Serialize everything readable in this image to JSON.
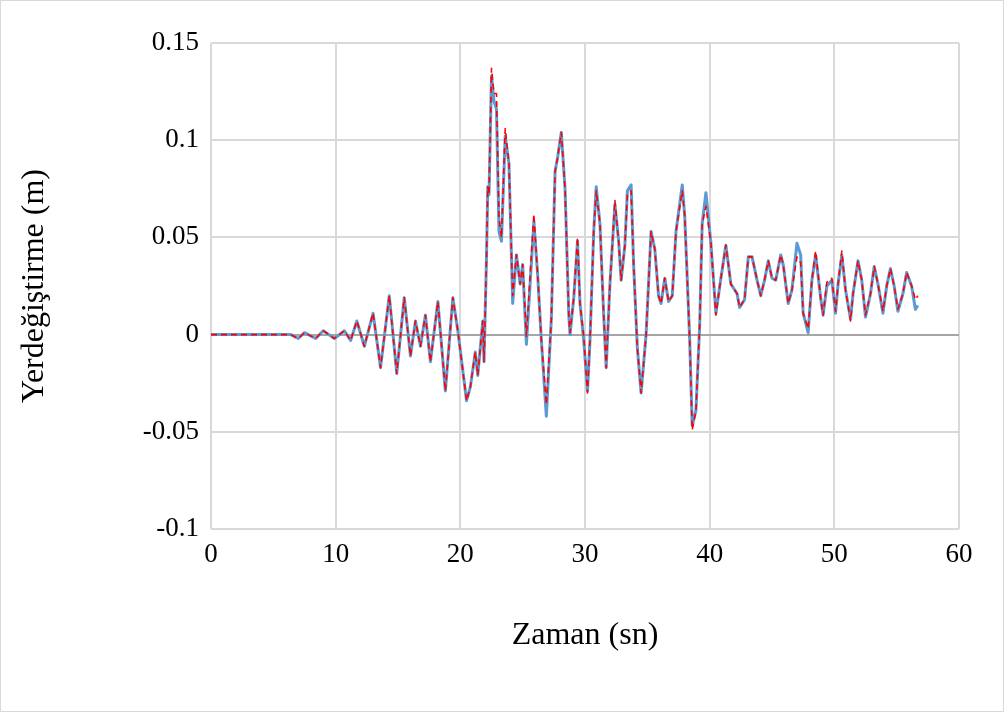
{
  "chart_data": {
    "type": "line",
    "xlabel": "Zaman (sn)",
    "ylabel": "Yerdeğiştirme (m)",
    "xlim": [
      0,
      60
    ],
    "xticks": [
      0,
      10,
      20,
      30,
      40,
      50,
      60
    ],
    "ylim": [
      -0.1,
      0.15
    ],
    "yticks": [
      -0.1,
      -0.05,
      0,
      0.05,
      0.1,
      0.15
    ],
    "grid": true,
    "legend": false,
    "marker": "none",
    "series": [
      {
        "color": "#5b9bd5",
        "line_style": "solid",
        "x": [
          0,
          6.4,
          7.0,
          7.5,
          8.4,
          9.0,
          9.9,
          10.7,
          11.2,
          11.7,
          12.3,
          13.0,
          13.6,
          14.3,
          14.9,
          15.5,
          16.0,
          16.4,
          16.8,
          17.2,
          17.6,
          18.2,
          18.8,
          19.4,
          19.8,
          20.5,
          20.8,
          21.2,
          21.4,
          21.8,
          21.9,
          22.1,
          22.2,
          22.3,
          22.5,
          22.7,
          22.9,
          23.1,
          23.3,
          23.6,
          23.9,
          24.2,
          24.5,
          24.8,
          25.0,
          25.3,
          25.9,
          26.2,
          26.5,
          26.9,
          27.3,
          27.6,
          27.8,
          28.1,
          28.4,
          28.7,
          28.8,
          29.1,
          29.4,
          29.6,
          29.9,
          30.2,
          30.4,
          30.7,
          30.9,
          31.2,
          31.5,
          31.7,
          32.0,
          32.4,
          32.7,
          32.9,
          33.2,
          33.4,
          33.7,
          33.9,
          34.2,
          34.5,
          34.9,
          35.3,
          35.6,
          35.9,
          36.1,
          36.4,
          36.7,
          37.0,
          37.3,
          37.8,
          38.0,
          38.4,
          38.6,
          38.9,
          39.2,
          39.4,
          39.7,
          40.1,
          40.5,
          40.9,
          41.3,
          41.7,
          42.2,
          42.4,
          42.8,
          43.1,
          43.4,
          43.8,
          44.1,
          44.4,
          44.7,
          45.0,
          45.3,
          45.7,
          45.9,
          46.3,
          46.6,
          47.0,
          47.3,
          47.5,
          47.9,
          48.2,
          48.5,
          48.9,
          49.1,
          49.4,
          49.8,
          50.1,
          50.3,
          50.6,
          50.9,
          51.3,
          51.5,
          51.9,
          52.2,
          52.5,
          52.9,
          53.2,
          53.5,
          53.9,
          54.2,
          54.5,
          54.8,
          55.1,
          55.5,
          55.8,
          56.2,
          56.5,
          56.7
        ],
        "values": [
          0,
          0,
          -0.002,
          0.001,
          -0.002,
          0.002,
          -0.002,
          0.002,
          -0.003,
          0.007,
          -0.006,
          0.011,
          -0.017,
          0.02,
          -0.02,
          0.019,
          -0.011,
          0.007,
          -0.006,
          0.01,
          -0.014,
          0.017,
          -0.029,
          0.019,
          0.002,
          -0.034,
          -0.027,
          -0.009,
          -0.021,
          0.007,
          -0.014,
          0.04,
          0.076,
          0.072,
          0.133,
          0.12,
          0.116,
          0.053,
          0.048,
          0.102,
          0.088,
          0.016,
          0.041,
          0.026,
          0.036,
          -0.005,
          0.058,
          0.031,
          -0.003,
          -0.042,
          0.008,
          0.084,
          0.091,
          0.104,
          0.075,
          0.01,
          0,
          0.019,
          0.048,
          0.016,
          -0.003,
          -0.029,
          -0.003,
          0.053,
          0.076,
          0.057,
          0.01,
          -0.017,
          0.026,
          0.067,
          0.048,
          0.028,
          0.046,
          0.074,
          0.077,
          0.036,
          -0.007,
          -0.03,
          0,
          0.053,
          0.044,
          0.02,
          0.016,
          0.029,
          0.017,
          0.02,
          0.053,
          0.077,
          0.061,
          -0.003,
          -0.047,
          -0.039,
          0.005,
          0.057,
          0.073,
          0.047,
          0.011,
          0.029,
          0.046,
          0.026,
          0.021,
          0.014,
          0.018,
          0.04,
          0.04,
          0.028,
          0.02,
          0.028,
          0.038,
          0.029,
          0.028,
          0.041,
          0.036,
          0.016,
          0.023,
          0.047,
          0.041,
          0.011,
          0.001,
          0.028,
          0.041,
          0.019,
          0.01,
          0.025,
          0.028,
          0.011,
          0.026,
          0.041,
          0.023,
          0.008,
          0.021,
          0.038,
          0.028,
          0.009,
          0.021,
          0.035,
          0.026,
          0.011,
          0.025,
          0.034,
          0.025,
          0.012,
          0.021,
          0.032,
          0.025,
          0.013,
          0.015
        ]
      },
      {
        "color": "#ff0000",
        "line_style": "dashed",
        "x": [
          0,
          6.4,
          7.0,
          7.5,
          8.4,
          9.0,
          9.9,
          10.7,
          11.2,
          11.7,
          12.3,
          13.0,
          13.6,
          14.3,
          14.9,
          15.5,
          16.0,
          16.4,
          16.8,
          17.2,
          17.6,
          18.2,
          18.8,
          19.4,
          19.8,
          20.5,
          20.8,
          21.2,
          21.4,
          21.8,
          21.9,
          22.1,
          22.2,
          22.3,
          22.5,
          22.7,
          22.9,
          23.1,
          23.3,
          23.6,
          23.9,
          24.2,
          24.5,
          24.8,
          25.0,
          25.3,
          25.9,
          26.2,
          26.5,
          26.9,
          27.3,
          27.6,
          27.8,
          28.1,
          28.4,
          28.7,
          28.8,
          29.1,
          29.4,
          29.6,
          29.9,
          30.2,
          30.4,
          30.7,
          30.9,
          31.2,
          31.5,
          31.7,
          32.0,
          32.4,
          32.7,
          32.9,
          33.2,
          33.4,
          33.7,
          33.9,
          34.2,
          34.5,
          34.9,
          35.3,
          35.6,
          35.9,
          36.1,
          36.4,
          36.7,
          37.0,
          37.3,
          37.8,
          38.0,
          38.4,
          38.6,
          38.9,
          39.2,
          39.4,
          39.7,
          40.1,
          40.5,
          40.9,
          41.3,
          41.7,
          42.2,
          42.4,
          42.8,
          43.1,
          43.4,
          43.8,
          44.1,
          44.4,
          44.7,
          45.0,
          45.3,
          45.7,
          45.9,
          46.3,
          46.6,
          47.0,
          47.3,
          47.5,
          47.9,
          48.2,
          48.5,
          48.9,
          49.1,
          49.4,
          49.8,
          50.1,
          50.3,
          50.6,
          50.9,
          51.3,
          51.5,
          51.9,
          52.2,
          52.5,
          52.9,
          53.2,
          53.5,
          53.9,
          54.2,
          54.5,
          54.8,
          55.1,
          55.5,
          55.8,
          56.2,
          56.5,
          56.7
        ],
        "values": [
          0,
          0,
          -0.002,
          0.001,
          -0.002,
          0.002,
          -0.002,
          0.002,
          -0.003,
          0.007,
          -0.006,
          0.011,
          -0.017,
          0.02,
          -0.02,
          0.019,
          -0.011,
          0.007,
          -0.006,
          0.01,
          -0.014,
          0.017,
          -0.029,
          0.019,
          0.002,
          -0.034,
          -0.027,
          -0.009,
          -0.021,
          0.007,
          -0.014,
          0.04,
          0.076,
          0.072,
          0.137,
          0.124,
          0.124,
          0.06,
          0.05,
          0.106,
          0.088,
          0.02,
          0.041,
          0.026,
          0.036,
          -0.001,
          0.062,
          0.031,
          -0.003,
          -0.036,
          0.008,
          0.084,
          0.091,
          0.104,
          0.075,
          0.01,
          0.001,
          0.019,
          0.05,
          0.016,
          -0.001,
          -0.03,
          -0.003,
          0.053,
          0.074,
          0.057,
          0.01,
          -0.017,
          0.026,
          0.069,
          0.048,
          0.028,
          0.046,
          0.072,
          0.074,
          0.036,
          -0.007,
          -0.03,
          0,
          0.053,
          0.044,
          0.02,
          0.016,
          0.029,
          0.017,
          0.02,
          0.053,
          0.074,
          0.061,
          -0.003,
          -0.049,
          -0.039,
          0.005,
          0.057,
          0.066,
          0.047,
          0.01,
          0.029,
          0.046,
          0.026,
          0.021,
          0.014,
          0.018,
          0.04,
          0.04,
          0.028,
          0.02,
          0.028,
          0.038,
          0.029,
          0.028,
          0.041,
          0.036,
          0.016,
          0.023,
          0.04,
          0.037,
          0.011,
          0.003,
          0.028,
          0.043,
          0.019,
          0.01,
          0.027,
          0.029,
          0.012,
          0.026,
          0.043,
          0.023,
          0.007,
          0.021,
          0.038,
          0.028,
          0.01,
          0.021,
          0.035,
          0.026,
          0.012,
          0.025,
          0.034,
          0.025,
          0.013,
          0.021,
          0.032,
          0.025,
          0.018,
          0.02
        ]
      }
    ]
  }
}
